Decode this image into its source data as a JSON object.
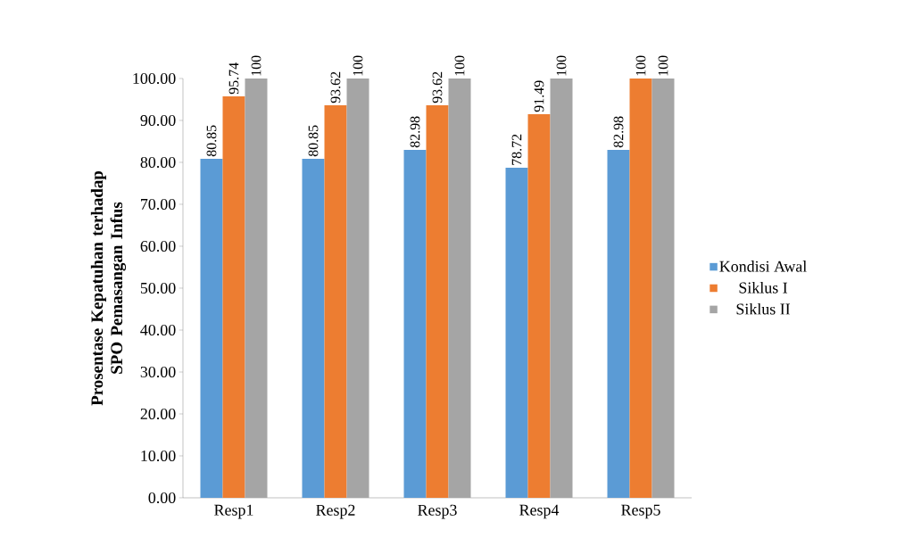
{
  "chart_data": {
    "type": "bar",
    "ylabel": "Prosentase Kepatuhan terhadap SPO Pemasangan Infus",
    "categories": [
      "Resp1",
      "Resp2",
      "Resp3",
      "Resp4",
      "Resp5"
    ],
    "series": [
      {
        "name": "Kondisi Awal",
        "color": "#5b9bd5",
        "values": [
          80.85,
          80.85,
          82.98,
          78.72,
          82.98
        ],
        "value_labels": [
          "80.85",
          "80.85",
          "82.98",
          "78.72",
          "82.98"
        ]
      },
      {
        "name": "Siklus I",
        "color": "#ed7d31",
        "values": [
          95.74,
          93.62,
          93.62,
          91.49,
          100
        ],
        "value_labels": [
          "95.74",
          "93.62",
          "93.62",
          "91.49",
          "100"
        ]
      },
      {
        "name": "Siklus II",
        "color": "#a5a5a5",
        "values": [
          100,
          100,
          100,
          100,
          100
        ],
        "value_labels": [
          "100",
          "100",
          "100",
          "100",
          "100"
        ]
      }
    ],
    "ylim": [
      0,
      100
    ],
    "yticks": [
      {
        "value": 0,
        "label": "0.00"
      },
      {
        "value": 10,
        "label": "10.00"
      },
      {
        "value": 20,
        "label": "20.00"
      },
      {
        "value": 30,
        "label": "30.00"
      },
      {
        "value": 40,
        "label": "40.00"
      },
      {
        "value": 50,
        "label": "50.00"
      },
      {
        "value": 60,
        "label": "60.00"
      },
      {
        "value": 70,
        "label": "70.00"
      },
      {
        "value": 80,
        "label": "80.00"
      },
      {
        "value": 90,
        "label": "90.00"
      },
      {
        "value": 100,
        "label": "100.00"
      }
    ],
    "legend": "right"
  }
}
